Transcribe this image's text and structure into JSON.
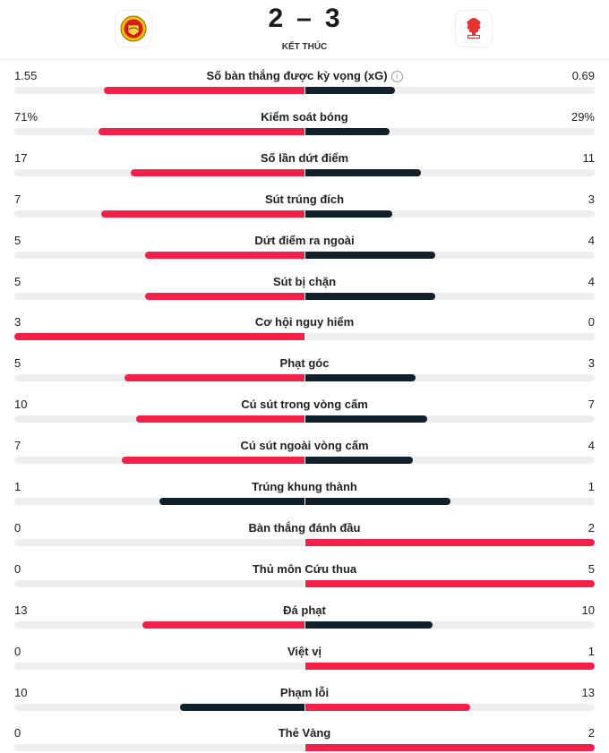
{
  "match": {
    "home_score": "2",
    "separator": "–",
    "away_score": "3",
    "status": "KẾT THÚC",
    "home_logo_icon": "manchester-united-crest",
    "away_logo_icon": "nottingham-forest-crest"
  },
  "colors": {
    "winner": "#f5204a",
    "loser": "#11202b",
    "track": "#eeeef1"
  },
  "stats": [
    {
      "label": "Số bàn thắng được kỳ vọng (xG)",
      "home": "1.55",
      "away": "0.69",
      "info": true,
      "home_fill": 0.69,
      "away_fill": 0.31,
      "home_winner": true
    },
    {
      "label": "Kiểm soát bóng",
      "home": "71%",
      "away": "29%",
      "home_fill": 0.71,
      "away_fill": 0.29,
      "home_winner": true
    },
    {
      "label": "Số lần dứt điểm",
      "home": "17",
      "away": "11",
      "home_fill": 0.6,
      "away_fill": 0.4,
      "home_winner": true
    },
    {
      "label": "Sút trúng đích",
      "home": "7",
      "away": "3",
      "home_fill": 0.7,
      "away_fill": 0.3,
      "home_winner": true
    },
    {
      "label": "Dứt điểm ra ngoài",
      "home": "5",
      "away": "4",
      "home_fill": 0.55,
      "away_fill": 0.45,
      "home_winner": true
    },
    {
      "label": "Sút bị chặn",
      "home": "5",
      "away": "4",
      "home_fill": 0.55,
      "away_fill": 0.45,
      "home_winner": true
    },
    {
      "label": "Cơ hội nguy hiểm",
      "home": "3",
      "away": "0",
      "home_fill": 1.0,
      "away_fill": 0.0,
      "home_winner": true
    },
    {
      "label": "Phạt góc",
      "home": "5",
      "away": "3",
      "home_fill": 0.62,
      "away_fill": 0.38,
      "home_winner": true
    },
    {
      "label": "Cú sút trong vòng cấm",
      "home": "10",
      "away": "7",
      "home_fill": 0.58,
      "away_fill": 0.42,
      "home_winner": true
    },
    {
      "label": "Cú sút ngoài vòng cấm",
      "home": "7",
      "away": "4",
      "home_fill": 0.63,
      "away_fill": 0.37,
      "home_winner": true
    },
    {
      "label": "Trúng khung thành",
      "home": "1",
      "away": "1",
      "home_fill": 0.5,
      "away_fill": 0.5,
      "home_winner": false,
      "tie": true
    },
    {
      "label": "Bàn thắng đánh đầu",
      "home": "0",
      "away": "2",
      "home_fill": 0.0,
      "away_fill": 1.0,
      "home_winner": false
    },
    {
      "label": "Thủ môn Cứu thua",
      "home": "0",
      "away": "5",
      "home_fill": 0.0,
      "away_fill": 1.0,
      "home_winner": false
    },
    {
      "label": "Đá phạt",
      "home": "13",
      "away": "10",
      "home_fill": 0.56,
      "away_fill": 0.44,
      "home_winner": true
    },
    {
      "label": "Việt vị",
      "home": "0",
      "away": "1",
      "home_fill": 0.0,
      "away_fill": 1.0,
      "home_winner": false
    },
    {
      "label": "Phạm lỗi",
      "home": "10",
      "away": "13",
      "home_fill": 0.43,
      "away_fill": 0.57,
      "home_winner": false
    },
    {
      "label": "Thẻ Vàng",
      "home": "0",
      "away": "2",
      "home_fill": 0.0,
      "away_fill": 1.0,
      "home_winner": false
    }
  ]
}
